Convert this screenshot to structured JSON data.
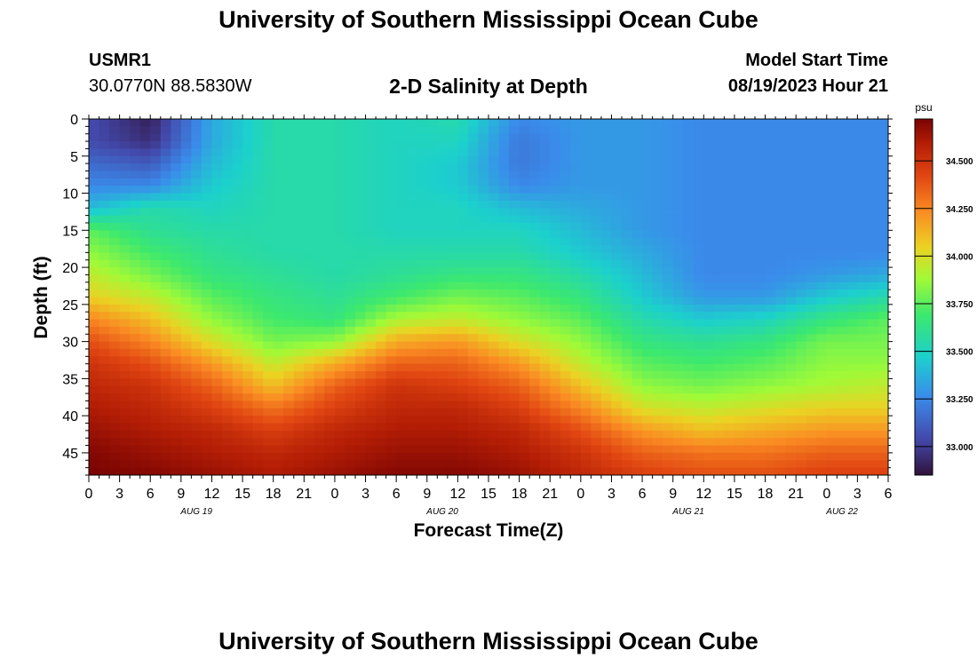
{
  "header": {
    "title": "University of Southern Mississippi Ocean Cube",
    "station_id": "USMR1",
    "station_coords": "30.0770N  88.5830W",
    "subtitle": "2-D Salinity at Depth",
    "model_label": "Model Start Time",
    "model_time": "08/19/2023 Hour 21"
  },
  "footer": {
    "title": "University of Southern Mississippi Ocean Cube"
  },
  "chart_data": {
    "type": "heatmap",
    "title": "2-D Salinity at Depth",
    "xlabel": "Forecast Time(Z)",
    "ylabel": "Depth (ft)",
    "x_tick_labels": [
      "0",
      "3",
      "6",
      "9",
      "12",
      "15",
      "18",
      "21",
      "0",
      "3",
      "6",
      "9",
      "12",
      "15",
      "18",
      "21",
      "0",
      "3",
      "6",
      "9",
      "12",
      "15",
      "18",
      "21",
      "0",
      "3",
      "6"
    ],
    "date_labels": [
      {
        "label": "AUG 19",
        "x_hours": 10.5
      },
      {
        "label": "AUG 20",
        "x_hours": 34.5
      },
      {
        "label": "AUG 21",
        "x_hours": 58.5
      },
      {
        "label": "AUG 22",
        "x_hours": 73.5
      }
    ],
    "x_range_hours": [
      0,
      78
    ],
    "y_ticks": [
      0,
      5,
      10,
      15,
      20,
      25,
      30,
      35,
      40,
      45
    ],
    "ylim": [
      0,
      48
    ],
    "y_inverted": true,
    "colorbar": {
      "unit_label": "psu",
      "range": [
        32.85,
        34.72
      ],
      "ticks": [
        "33.000",
        "33.250",
        "33.500",
        "33.750",
        "34.000",
        "34.250",
        "34.500"
      ],
      "tick_values": [
        33.0,
        33.25,
        33.5,
        33.75,
        34.0,
        34.25,
        34.5
      ]
    },
    "grid_x_hours": [
      0,
      6,
      12,
      18,
      24,
      30,
      36,
      42,
      48,
      54,
      60,
      66,
      72,
      78
    ],
    "grid_y_depth": [
      0,
      3,
      6,
      9,
      12,
      15,
      18,
      21,
      24,
      27,
      30,
      33,
      36,
      39,
      42,
      45,
      48
    ],
    "salinity_psu": [
      [
        33.05,
        32.9,
        33.35,
        33.55,
        33.55,
        33.5,
        33.55,
        33.25,
        33.3,
        33.3,
        33.25,
        33.25,
        33.25,
        33.25
      ],
      [
        33.05,
        32.95,
        33.35,
        33.55,
        33.55,
        33.5,
        33.5,
        33.2,
        33.3,
        33.3,
        33.25,
        33.25,
        33.25,
        33.25
      ],
      [
        33.15,
        33.1,
        33.4,
        33.55,
        33.55,
        33.5,
        33.45,
        33.2,
        33.3,
        33.3,
        33.25,
        33.25,
        33.25,
        33.25
      ],
      [
        33.25,
        33.25,
        33.45,
        33.55,
        33.55,
        33.5,
        33.45,
        33.25,
        33.3,
        33.3,
        33.25,
        33.25,
        33.25,
        33.25
      ],
      [
        33.4,
        33.55,
        33.5,
        33.55,
        33.55,
        33.5,
        33.5,
        33.4,
        33.35,
        33.3,
        33.25,
        33.25,
        33.25,
        33.25
      ],
      [
        33.75,
        33.6,
        33.55,
        33.55,
        33.55,
        33.5,
        33.5,
        33.5,
        33.4,
        33.3,
        33.25,
        33.25,
        33.25,
        33.25
      ],
      [
        33.85,
        33.7,
        33.6,
        33.55,
        33.55,
        33.55,
        33.55,
        33.55,
        33.45,
        33.35,
        33.25,
        33.25,
        33.25,
        33.25
      ],
      [
        33.95,
        33.8,
        33.65,
        33.6,
        33.55,
        33.6,
        33.65,
        33.65,
        33.55,
        33.4,
        33.25,
        33.25,
        33.3,
        33.35
      ],
      [
        34.05,
        33.95,
        33.75,
        33.65,
        33.6,
        33.7,
        33.8,
        33.75,
        33.65,
        33.45,
        33.3,
        33.3,
        33.45,
        33.55
      ],
      [
        34.25,
        34.1,
        33.85,
        33.7,
        33.65,
        33.9,
        33.95,
        33.85,
        33.75,
        33.55,
        33.45,
        33.5,
        33.65,
        33.75
      ],
      [
        34.4,
        34.25,
        34.0,
        33.8,
        33.85,
        34.15,
        34.2,
        34.0,
        33.85,
        33.65,
        33.6,
        33.65,
        33.8,
        33.8
      ],
      [
        34.5,
        34.4,
        34.2,
        33.95,
        34.15,
        34.35,
        34.35,
        34.2,
        33.95,
        33.75,
        33.7,
        33.75,
        33.85,
        33.85
      ],
      [
        34.55,
        34.5,
        34.35,
        34.1,
        34.35,
        34.5,
        34.45,
        34.35,
        34.1,
        33.85,
        33.8,
        33.85,
        33.9,
        33.95
      ],
      [
        34.6,
        34.55,
        34.45,
        34.3,
        34.45,
        34.55,
        34.55,
        34.45,
        34.25,
        34.0,
        33.95,
        34.0,
        34.05,
        34.05
      ],
      [
        34.65,
        34.6,
        34.55,
        34.45,
        34.55,
        34.6,
        34.6,
        34.55,
        34.4,
        34.2,
        34.1,
        34.15,
        34.2,
        34.2
      ],
      [
        34.7,
        34.65,
        34.6,
        34.55,
        34.6,
        34.65,
        34.65,
        34.6,
        34.5,
        34.35,
        34.3,
        34.3,
        34.35,
        34.35
      ],
      [
        34.72,
        34.7,
        34.65,
        34.6,
        34.65,
        34.7,
        34.7,
        34.65,
        34.55,
        34.45,
        34.4,
        34.4,
        34.45,
        34.45
      ]
    ],
    "grid": false,
    "legend": "right"
  }
}
